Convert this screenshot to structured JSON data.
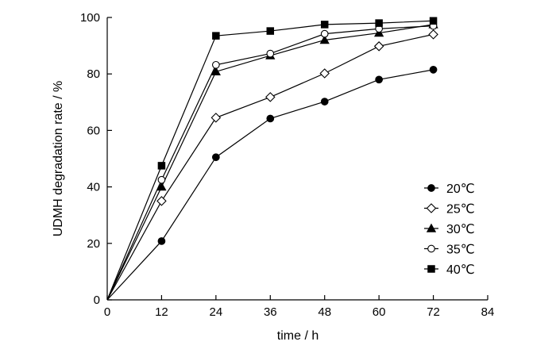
{
  "chart_data": {
    "type": "line",
    "title": "",
    "xlabel": "time / h",
    "ylabel": "UDMH degradation rate / %",
    "xlim": [
      0,
      84
    ],
    "ylim": [
      0,
      100
    ],
    "xticks": [
      0,
      12,
      24,
      36,
      48,
      60,
      72,
      84
    ],
    "yticks": [
      0,
      20,
      40,
      60,
      80,
      100
    ],
    "x": [
      0,
      12,
      24,
      36,
      48,
      60,
      72
    ],
    "grid": false,
    "legend_position": "lower-right",
    "colors": {
      "line": "#000000",
      "marker_fill": "#000000",
      "background": "#ffffff"
    },
    "series": [
      {
        "name": "20℃",
        "marker": "filled-circle",
        "values": [
          0,
          20.8,
          50.5,
          64.2,
          70.2,
          78.0,
          81.5
        ]
      },
      {
        "name": "25℃",
        "marker": "open-diamond",
        "values": [
          0,
          35.0,
          64.5,
          71.8,
          80.2,
          89.8,
          94.0
        ]
      },
      {
        "name": "30℃",
        "marker": "filled-triangle",
        "values": [
          0,
          40.0,
          80.8,
          86.5,
          92.0,
          94.5,
          97.5
        ]
      },
      {
        "name": "35℃",
        "marker": "open-circle",
        "values": [
          0,
          42.5,
          83.2,
          87.2,
          94.2,
          96.0,
          97.0
        ]
      },
      {
        "name": "40℃",
        "marker": "filled-square",
        "values": [
          0,
          47.5,
          93.5,
          95.2,
          97.5,
          98.0,
          98.8
        ]
      }
    ]
  }
}
